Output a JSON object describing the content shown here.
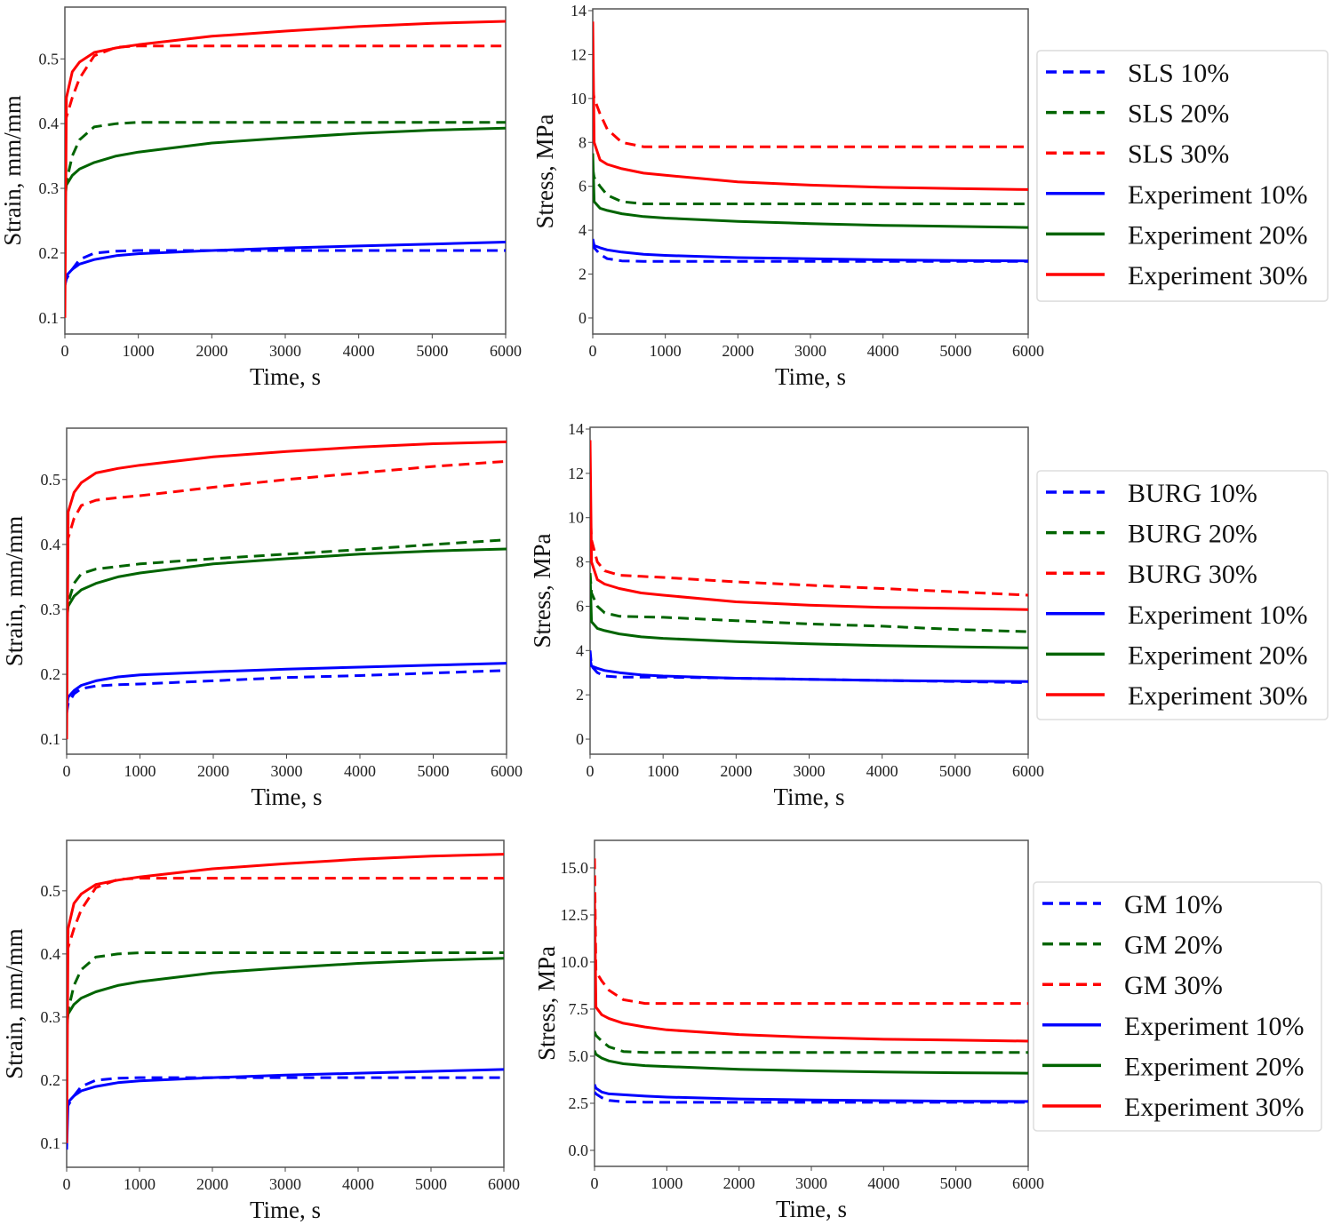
{
  "colors": {
    "c10": "#0000ff",
    "c20": "#006400",
    "c30": "#ff0000"
  },
  "chart_data": [
    {
      "type": "line",
      "xlabel": "Time, s",
      "ylabel": "Strain, mm/mm",
      "xlim": [
        0,
        6000
      ],
      "ylim": [
        0.075,
        0.58
      ],
      "grid": false,
      "legend": "none",
      "xticks": [
        "0",
        "1000",
        "2000",
        "3000",
        "4000",
        "5000",
        "6000"
      ],
      "yticks": [
        "0.1",
        "0.2",
        "0.3",
        "0.4",
        "0.5"
      ],
      "x": [
        0,
        20,
        100,
        200,
        400,
        700,
        1000,
        2000,
        3000,
        4000,
        5000,
        6000
      ],
      "series": [
        {
          "style": "dashed",
          "color": "#0000ff",
          "values": [
            0.15,
            0.16,
            0.175,
            0.19,
            0.2,
            0.203,
            0.204,
            0.204,
            0.204,
            0.204,
            0.204,
            0.204
          ]
        },
        {
          "style": "dashed",
          "color": "#006400",
          "values": [
            0.3,
            0.31,
            0.35,
            0.375,
            0.395,
            0.4,
            0.402,
            0.402,
            0.402,
            0.402,
            0.402,
            0.402
          ]
        },
        {
          "style": "dashed",
          "color": "#ff0000",
          "values": [
            0.4,
            0.41,
            0.44,
            0.47,
            0.505,
            0.518,
            0.52,
            0.52,
            0.52,
            0.52,
            0.52,
            0.52
          ]
        },
        {
          "style": "solid",
          "color": "#0000ff",
          "values": [
            0.15,
            0.165,
            0.175,
            0.183,
            0.19,
            0.196,
            0.199,
            0.204,
            0.208,
            0.211,
            0.214,
            0.217
          ]
        },
        {
          "style": "solid",
          "color": "#006400",
          "values": [
            0.28,
            0.305,
            0.32,
            0.33,
            0.34,
            0.35,
            0.356,
            0.37,
            0.378,
            0.385,
            0.39,
            0.393
          ]
        },
        {
          "style": "solid",
          "color": "#ff0000",
          "values": [
            0.1,
            0.44,
            0.48,
            0.495,
            0.51,
            0.517,
            0.522,
            0.535,
            0.543,
            0.55,
            0.555,
            0.558
          ]
        }
      ]
    },
    {
      "type": "line",
      "xlabel": "Time, s",
      "ylabel": "Stress, MPa",
      "xlim": [
        0,
        6000
      ],
      "ylim": [
        -0.73,
        14.08
      ],
      "grid": false,
      "legend": "right",
      "xticks": [
        "0",
        "1000",
        "2000",
        "3000",
        "4000",
        "5000",
        "6000"
      ],
      "yticks": [
        "0",
        "2",
        "4",
        "6",
        "8",
        "10",
        "12",
        "14"
      ],
      "x": [
        0,
        20,
        100,
        200,
        400,
        700,
        1000,
        2000,
        3000,
        4000,
        5000,
        6000
      ],
      "series": [
        {
          "name": "SLS 10%",
          "style": "dashed",
          "color": "#0000ff",
          "values": [
            3.4,
            3.2,
            2.9,
            2.7,
            2.6,
            2.58,
            2.58,
            2.58,
            2.58,
            2.58,
            2.58,
            2.58
          ]
        },
        {
          "name": "SLS 20%",
          "style": "dashed",
          "color": "#006400",
          "values": [
            6.8,
            6.4,
            6.0,
            5.6,
            5.3,
            5.2,
            5.2,
            5.2,
            5.2,
            5.2,
            5.2,
            5.2
          ]
        },
        {
          "name": "SLS 30%",
          "style": "dashed",
          "color": "#ff0000",
          "values": [
            10.5,
            10.0,
            9.3,
            8.6,
            8.0,
            7.8,
            7.8,
            7.8,
            7.8,
            7.8,
            7.8,
            7.8
          ]
        },
        {
          "name": "Experiment 10%",
          "style": "solid",
          "color": "#0000ff",
          "values": [
            3.6,
            3.3,
            3.2,
            3.1,
            3.0,
            2.9,
            2.85,
            2.75,
            2.7,
            2.65,
            2.62,
            2.6
          ]
        },
        {
          "name": "Experiment 20%",
          "style": "solid",
          "color": "#006400",
          "values": [
            7.5,
            5.3,
            5.0,
            4.9,
            4.75,
            4.62,
            4.55,
            4.4,
            4.3,
            4.22,
            4.17,
            4.12
          ]
        },
        {
          "name": "Experiment 30%",
          "style": "solid",
          "color": "#ff0000",
          "values": [
            13.5,
            8.0,
            7.2,
            7.0,
            6.8,
            6.6,
            6.5,
            6.2,
            6.05,
            5.95,
            5.9,
            5.85
          ]
        }
      ]
    },
    {
      "type": "line",
      "xlabel": "Time, s",
      "ylabel": "Strain, mm/mm",
      "xlim": [
        0,
        6000
      ],
      "ylim": [
        0.077,
        0.579
      ],
      "grid": false,
      "legend": "none",
      "xticks": [
        "0",
        "1000",
        "2000",
        "3000",
        "4000",
        "5000",
        "6000"
      ],
      "yticks": [
        "0.1",
        "0.2",
        "0.3",
        "0.4",
        "0.5"
      ],
      "x": [
        0,
        20,
        100,
        200,
        400,
        700,
        1000,
        2000,
        3000,
        4000,
        5000,
        6000
      ],
      "series": [
        {
          "style": "dashed",
          "color": "#0000ff",
          "values": [
            0.14,
            0.155,
            0.17,
            0.178,
            0.182,
            0.184,
            0.185,
            0.19,
            0.195,
            0.198,
            0.202,
            0.206
          ]
        },
        {
          "style": "dashed",
          "color": "#006400",
          "values": [
            0.29,
            0.31,
            0.34,
            0.355,
            0.362,
            0.366,
            0.37,
            0.378,
            0.385,
            0.392,
            0.4,
            0.407
          ]
        },
        {
          "style": "dashed",
          "color": "#ff0000",
          "values": [
            0.4,
            0.41,
            0.44,
            0.46,
            0.468,
            0.472,
            0.475,
            0.488,
            0.5,
            0.51,
            0.52,
            0.528
          ]
        },
        {
          "style": "solid",
          "color": "#0000ff",
          "values": [
            0.15,
            0.165,
            0.175,
            0.183,
            0.19,
            0.196,
            0.199,
            0.204,
            0.208,
            0.211,
            0.214,
            0.217
          ]
        },
        {
          "style": "solid",
          "color": "#006400",
          "values": [
            0.28,
            0.305,
            0.32,
            0.33,
            0.34,
            0.35,
            0.356,
            0.37,
            0.378,
            0.385,
            0.39,
            0.393
          ]
        },
        {
          "style": "solid",
          "color": "#ff0000",
          "values": [
            0.1,
            0.45,
            0.48,
            0.495,
            0.51,
            0.517,
            0.522,
            0.535,
            0.543,
            0.55,
            0.555,
            0.558
          ]
        }
      ]
    },
    {
      "type": "line",
      "xlabel": "Time, s",
      "ylabel": "Stress, MPa",
      "xlim": [
        0,
        6000
      ],
      "ylim": [
        -0.68,
        14.08
      ],
      "grid": false,
      "legend": "right",
      "xticks": [
        "0",
        "1000",
        "2000",
        "3000",
        "4000",
        "5000",
        "6000"
      ],
      "yticks": [
        "0",
        "2",
        "4",
        "6",
        "8",
        "10",
        "12",
        "14"
      ],
      "x": [
        0,
        20,
        100,
        200,
        400,
        700,
        1000,
        2000,
        3000,
        4000,
        5000,
        6000
      ],
      "series": [
        {
          "name": "BURG 10%",
          "style": "dashed",
          "color": "#0000ff",
          "values": [
            4.0,
            3.3,
            3.0,
            2.85,
            2.8,
            2.8,
            2.8,
            2.75,
            2.7,
            2.65,
            2.6,
            2.55
          ]
        },
        {
          "name": "BURG 20%",
          "style": "dashed",
          "color": "#006400",
          "values": [
            7.5,
            6.6,
            6.0,
            5.7,
            5.55,
            5.52,
            5.5,
            5.35,
            5.2,
            5.1,
            4.95,
            4.85
          ]
        },
        {
          "name": "BURG 30%",
          "style": "dashed",
          "color": "#ff0000",
          "values": [
            10.5,
            9.0,
            8.0,
            7.6,
            7.4,
            7.35,
            7.3,
            7.1,
            6.95,
            6.8,
            6.65,
            6.5
          ]
        },
        {
          "name": "Experiment 10%",
          "style": "solid",
          "color": "#0000ff",
          "values": [
            3.6,
            3.3,
            3.2,
            3.1,
            3.0,
            2.9,
            2.85,
            2.75,
            2.7,
            2.65,
            2.62,
            2.6
          ]
        },
        {
          "name": "Experiment 20%",
          "style": "solid",
          "color": "#006400",
          "values": [
            7.5,
            5.3,
            5.0,
            4.9,
            4.75,
            4.62,
            4.55,
            4.4,
            4.3,
            4.22,
            4.17,
            4.12
          ]
        },
        {
          "name": "Experiment 30%",
          "style": "solid",
          "color": "#ff0000",
          "values": [
            13.5,
            8.0,
            7.2,
            7.0,
            6.8,
            6.6,
            6.5,
            6.2,
            6.05,
            5.95,
            5.9,
            5.85
          ]
        }
      ]
    },
    {
      "type": "line",
      "xlabel": "Time, s",
      "ylabel": "Strain, mm/mm",
      "xlim": [
        0,
        6000
      ],
      "ylim": [
        0.062,
        0.58
      ],
      "grid": false,
      "legend": "none",
      "xticks": [
        "0",
        "1000",
        "2000",
        "3000",
        "4000",
        "5000",
        "6000"
      ],
      "yticks": [
        "0.1",
        "0.2",
        "0.3",
        "0.4",
        "0.5"
      ],
      "x": [
        0,
        20,
        100,
        200,
        400,
        700,
        1000,
        2000,
        3000,
        4000,
        5000,
        6000
      ],
      "series": [
        {
          "style": "dashed",
          "color": "#0000ff",
          "values": [
            0.15,
            0.16,
            0.175,
            0.19,
            0.2,
            0.203,
            0.204,
            0.204,
            0.204,
            0.204,
            0.204,
            0.204
          ]
        },
        {
          "style": "dashed",
          "color": "#006400",
          "values": [
            0.3,
            0.31,
            0.35,
            0.375,
            0.395,
            0.4,
            0.402,
            0.402,
            0.402,
            0.402,
            0.402,
            0.402
          ]
        },
        {
          "style": "dashed",
          "color": "#ff0000",
          "values": [
            0.4,
            0.41,
            0.44,
            0.47,
            0.505,
            0.518,
            0.52,
            0.52,
            0.52,
            0.52,
            0.52,
            0.52
          ]
        },
        {
          "style": "solid",
          "color": "#0000ff",
          "values": [
            0.09,
            0.165,
            0.175,
            0.183,
            0.19,
            0.196,
            0.199,
            0.204,
            0.208,
            0.211,
            0.214,
            0.217
          ]
        },
        {
          "style": "solid",
          "color": "#006400",
          "values": [
            0.28,
            0.305,
            0.32,
            0.33,
            0.34,
            0.35,
            0.356,
            0.37,
            0.378,
            0.385,
            0.39,
            0.393
          ]
        },
        {
          "style": "solid",
          "color": "#ff0000",
          "values": [
            0.1,
            0.44,
            0.48,
            0.495,
            0.51,
            0.517,
            0.522,
            0.535,
            0.543,
            0.55,
            0.555,
            0.558
          ]
        }
      ]
    },
    {
      "type": "line",
      "xlabel": "Time, s",
      "ylabel": "Stress, MPa",
      "xlim": [
        0,
        6000
      ],
      "ylim": [
        -0.85,
        16.46
      ],
      "grid": false,
      "legend": "right",
      "xticks": [
        "0",
        "1000",
        "2000",
        "3000",
        "4000",
        "5000",
        "6000"
      ],
      "yticks": [
        "0.0",
        "2.5",
        "5.0",
        "7.5",
        "10.0",
        "12.5",
        "15.0"
      ],
      "x": [
        0,
        20,
        100,
        200,
        400,
        700,
        1000,
        2000,
        3000,
        4000,
        5000,
        6000
      ],
      "series": [
        {
          "name": "GM 10%",
          "style": "dashed",
          "color": "#0000ff",
          "values": [
            3.1,
            3.0,
            2.8,
            2.65,
            2.58,
            2.56,
            2.55,
            2.55,
            2.55,
            2.55,
            2.55,
            2.55
          ]
        },
        {
          "name": "GM 20%",
          "style": "dashed",
          "color": "#006400",
          "values": [
            6.3,
            6.1,
            5.8,
            5.5,
            5.25,
            5.2,
            5.2,
            5.2,
            5.2,
            5.2,
            5.2,
            5.2
          ]
        },
        {
          "name": "GM 30%",
          "style": "dashed",
          "color": "#ff0000",
          "values": [
            15.5,
            9.5,
            9.0,
            8.5,
            8.0,
            7.8,
            7.8,
            7.8,
            7.8,
            7.8,
            7.8,
            7.8
          ]
        },
        {
          "name": "Experiment 10%",
          "style": "solid",
          "color": "#0000ff",
          "values": [
            3.5,
            3.3,
            3.1,
            3.0,
            2.95,
            2.88,
            2.83,
            2.73,
            2.68,
            2.64,
            2.61,
            2.6
          ]
        },
        {
          "name": "Experiment 20%",
          "style": "solid",
          "color": "#006400",
          "values": [
            5.3,
            5.1,
            4.9,
            4.75,
            4.6,
            4.5,
            4.45,
            4.3,
            4.22,
            4.16,
            4.12,
            4.1
          ]
        },
        {
          "name": "Experiment 30%",
          "style": "solid",
          "color": "#ff0000",
          "values": [
            13.5,
            7.6,
            7.2,
            7.0,
            6.75,
            6.55,
            6.4,
            6.15,
            6.0,
            5.9,
            5.85,
            5.8
          ]
        }
      ]
    }
  ]
}
